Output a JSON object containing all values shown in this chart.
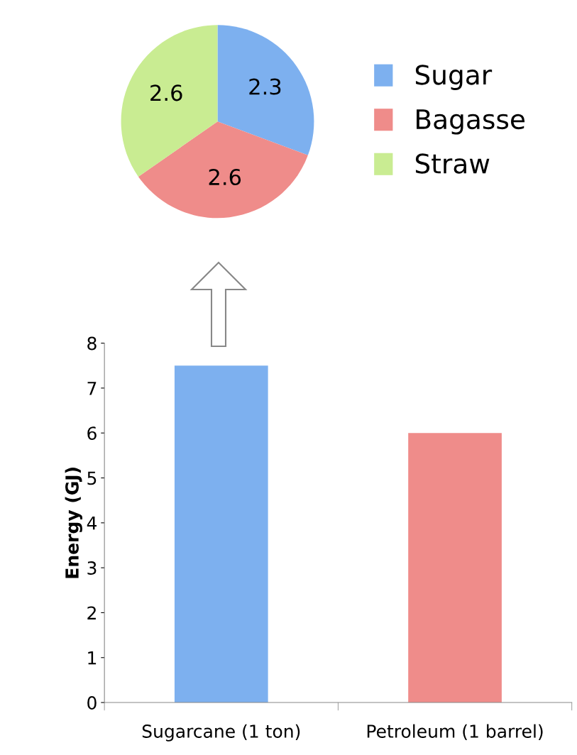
{
  "chart_data": [
    {
      "type": "pie",
      "categories": [
        "Sugar",
        "Bagasse",
        "Straw"
      ],
      "values": [
        2.3,
        2.6,
        2.6
      ],
      "colors": [
        "#7db0ef",
        "#ef8c8a",
        "#c9ec92"
      ],
      "data_labels": true,
      "legend": "right"
    },
    {
      "type": "bar",
      "categories": [
        "Sugarcane (1 ton)",
        "Petroleum (1 barrel)"
      ],
      "values": [
        7.5,
        6.0
      ],
      "colors": [
        "#7db0ef",
        "#ef8c8a"
      ],
      "ylabel": "Energy (GJ)",
      "ylim": [
        0,
        8
      ],
      "yticks": [
        0,
        1,
        2,
        3,
        4,
        5,
        6,
        7,
        8
      ],
      "grid": false
    }
  ]
}
